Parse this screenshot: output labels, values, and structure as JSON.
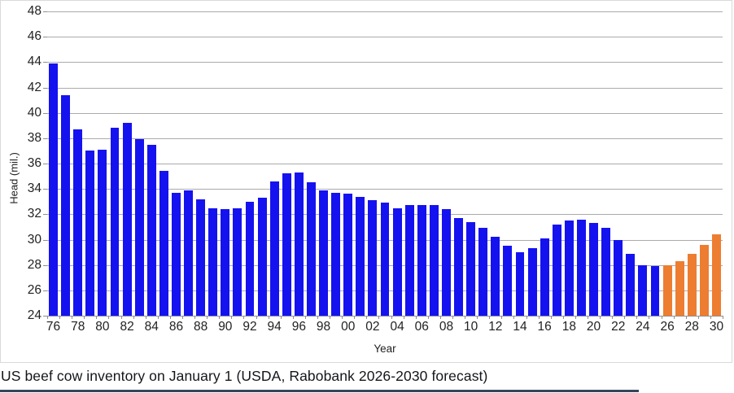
{
  "caption": "US beef cow inventory on January 1 (USDA, Rabobank 2026-2030 forecast)",
  "colors": {
    "bar_actual": "#1512F0",
    "bar_forecast": "#ED7D31",
    "gridline": "#ABABAB",
    "axis_line": "#8F8F8F",
    "caption_rule": "#33475B"
  },
  "chart_data": {
    "type": "bar",
    "title": "",
    "ylabel": "Head (mil.)",
    "xlabel": "Year",
    "ylim": [
      24,
      48
    ],
    "ytick_step": 2,
    "grid": true,
    "legend": "none",
    "x_label_every": 2,
    "years": [
      "76",
      "77",
      "78",
      "79",
      "80",
      "81",
      "82",
      "83",
      "84",
      "85",
      "86",
      "87",
      "88",
      "89",
      "90",
      "91",
      "92",
      "93",
      "94",
      "95",
      "96",
      "97",
      "98",
      "99",
      "00",
      "01",
      "02",
      "03",
      "04",
      "05",
      "06",
      "07",
      "08",
      "09",
      "10",
      "11",
      "12",
      "13",
      "14",
      "15",
      "16",
      "17",
      "18",
      "19",
      "20",
      "21",
      "22",
      "23",
      "24",
      "25",
      "26",
      "27",
      "28",
      "29",
      "30"
    ],
    "values": [
      43.9,
      41.4,
      38.7,
      37.0,
      37.1,
      38.8,
      39.2,
      37.9,
      37.5,
      35.4,
      33.7,
      33.9,
      33.2,
      32.5,
      32.4,
      32.5,
      33.0,
      33.3,
      34.6,
      35.2,
      35.3,
      34.5,
      33.9,
      33.7,
      33.6,
      33.4,
      33.1,
      32.9,
      32.5,
      32.7,
      32.7,
      32.7,
      32.4,
      31.7,
      31.4,
      30.9,
      30.2,
      29.5,
      29.0,
      29.3,
      30.1,
      31.2,
      31.5,
      31.6,
      31.3,
      30.9,
      30.0,
      28.9,
      28.0,
      27.9,
      28.0,
      28.3,
      28.9,
      29.6,
      30.4
    ],
    "forecast_start_year": "26",
    "forecast_start_index": 50,
    "series": [
      {
        "name": "USDA actual",
        "color_key": "bar_actual"
      },
      {
        "name": "Rabobank 2026-2030 forecast",
        "color_key": "bar_forecast"
      }
    ]
  }
}
